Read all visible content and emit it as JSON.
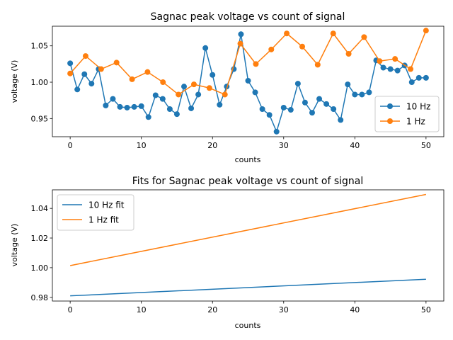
{
  "chart_data": [
    {
      "type": "line",
      "title": "Sagnac peak voltage vs count of signal",
      "xlabel": "counts",
      "ylabel": "voltage (V)",
      "xlim": [
        -2.5,
        52.5
      ],
      "ylim": [
        0.925,
        1.077
      ],
      "x_ticks": [
        0,
        10,
        20,
        30,
        40,
        50
      ],
      "y_ticks": [
        0.95,
        1.0,
        1.05
      ],
      "y_tick_labels": [
        "0.95",
        "1.00",
        "1.05"
      ],
      "grid": false,
      "legend_position": "lower right",
      "series": [
        {
          "name": "10 Hz",
          "color": "#1f77b4",
          "marker": "circle",
          "x": [
            0,
            1,
            2,
            3,
            4,
            5,
            6,
            7,
            8,
            9,
            10,
            11,
            12,
            13,
            14,
            15,
            16,
            17,
            18,
            19,
            20,
            21,
            22,
            23,
            24,
            25,
            26,
            27,
            28,
            29,
            30,
            31,
            32,
            33,
            34,
            35,
            36,
            37,
            38,
            39,
            40,
            41,
            42,
            43,
            44,
            45,
            46,
            47,
            48,
            49,
            50
          ],
          "values": [
            1.026,
            0.99,
            1.011,
            0.998,
            1.018,
            0.968,
            0.977,
            0.966,
            0.965,
            0.966,
            0.967,
            0.952,
            0.982,
            0.977,
            0.963,
            0.956,
            0.994,
            0.964,
            0.983,
            1.047,
            1.01,
            0.969,
            0.994,
            1.018,
            1.066,
            1.002,
            0.986,
            0.963,
            0.955,
            0.932,
            0.965,
            0.962,
            0.998,
            0.972,
            0.958,
            0.977,
            0.97,
            0.963,
            0.948,
            0.997,
            0.983,
            0.983,
            0.986,
            1.03,
            1.02,
            1.018,
            1.016,
            1.023,
            1.0,
            1.006,
            1.006
          ]
        },
        {
          "name": "1 Hz",
          "color": "#ff7f0e",
          "marker": "circle",
          "x": [
            0,
            2.17,
            4.35,
            6.52,
            8.7,
            10.87,
            13.04,
            15.22,
            17.39,
            19.57,
            21.74,
            23.91,
            26.09,
            28.26,
            30.43,
            32.61,
            34.78,
            36.96,
            39.13,
            41.3,
            43.48,
            45.65,
            47.83,
            50
          ],
          "values": [
            1.012,
            1.036,
            1.018,
            1.027,
            1.004,
            1.014,
            1.0,
            0.983,
            0.997,
            0.992,
            0.983,
            1.053,
            1.025,
            1.045,
            1.067,
            1.049,
            1.024,
            1.067,
            1.039,
            1.062,
            1.029,
            1.032,
            1.018,
            1.071
          ]
        }
      ]
    },
    {
      "type": "line",
      "title": "Fits for Sagnac peak voltage vs count of signal",
      "xlabel": "counts",
      "ylabel": "voltage (V)",
      "xlim": [
        -2.5,
        52.5
      ],
      "ylim": [
        0.9775,
        1.0525
      ],
      "x_ticks": [
        0,
        10,
        20,
        30,
        40,
        50
      ],
      "y_ticks": [
        0.98,
        1.0,
        1.02,
        1.04
      ],
      "y_tick_labels": [
        "0.98",
        "1.00",
        "1.02",
        "1.04"
      ],
      "grid": false,
      "legend_position": "upper left",
      "series": [
        {
          "name": "10 Hz fit",
          "color": "#1f77b4",
          "x": [
            0,
            50
          ],
          "values": [
            0.981,
            0.9922
          ]
        },
        {
          "name": "1 Hz fit",
          "color": "#ff7f0e",
          "x": [
            0,
            50
          ],
          "values": [
            1.0014,
            1.0494
          ]
        }
      ]
    }
  ]
}
